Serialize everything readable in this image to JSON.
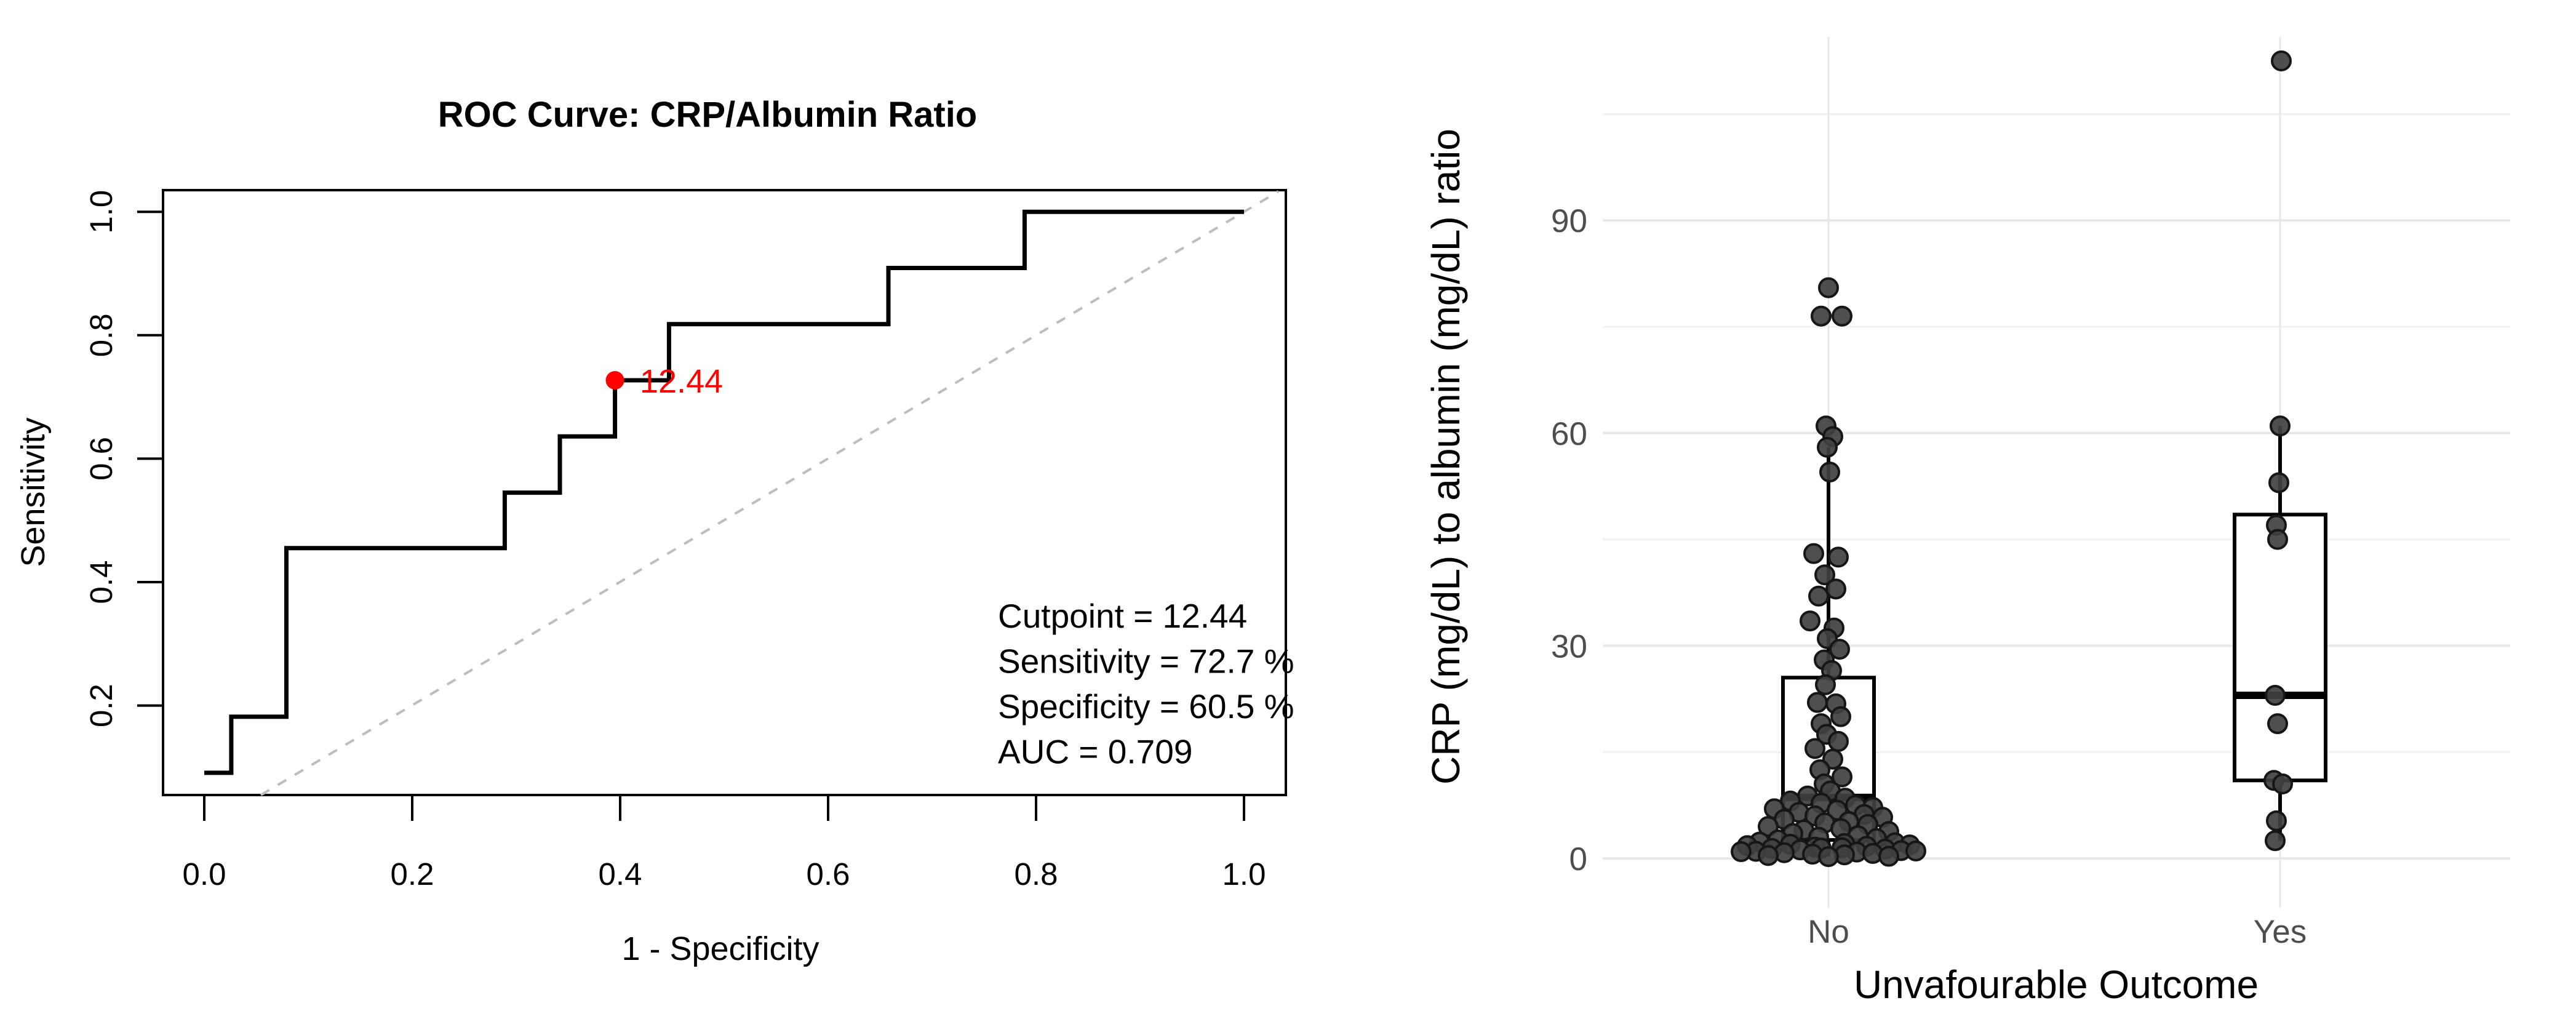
{
  "figure": {
    "background": "#ffffff",
    "description_left": "ROC curve panel",
    "description_right": "Boxplot with jittered points panel"
  },
  "chart_data": [
    {
      "type": "line",
      "subtype": "roc-step-curve",
      "title": "ROC Curve: CRP/Albumin Ratio",
      "xlabel": "1 - Specificity",
      "ylabel": "Sensitivity",
      "x_tick_labels": [
        "0.0",
        "0.2",
        "0.4",
        "0.6",
        "0.8",
        "1.0"
      ],
      "x_tick_values": [
        0,
        0.2,
        0.4,
        0.6,
        0.8,
        1.0
      ],
      "y_tick_labels": [
        "0.2",
        "0.4",
        "0.6",
        "0.8",
        "1.0"
      ],
      "y_tick_values": [
        0.2,
        0.4,
        0.6,
        0.8,
        1.0
      ],
      "xlim": [
        0,
        1
      ],
      "ylim": [
        0.09,
        1.0
      ],
      "grid": false,
      "legend": "none",
      "curve_color": "#000000",
      "diagonal_reference_line": true,
      "diagonal_color": "#bdbdbd",
      "roc_step_points": [
        [
          0,
          0.091
        ],
        [
          0.026,
          0.091
        ],
        [
          0.026,
          0.182
        ],
        [
          0.079,
          0.182
        ],
        [
          0.079,
          0.455
        ],
        [
          0.289,
          0.455
        ],
        [
          0.289,
          0.545
        ],
        [
          0.342,
          0.545
        ],
        [
          0.342,
          0.636
        ],
        [
          0.395,
          0.636
        ],
        [
          0.395,
          0.727
        ],
        [
          0.447,
          0.727
        ],
        [
          0.447,
          0.818
        ],
        [
          0.658,
          0.818
        ],
        [
          0.658,
          0.909
        ],
        [
          0.789,
          0.909
        ],
        [
          0.789,
          1.0
        ],
        [
          1.0,
          1.0
        ]
      ],
      "cutpoint": {
        "x": 0.395,
        "y": 0.727,
        "label": "12.44",
        "color": "#ff0000"
      },
      "annotation_lines": [
        "Cutpoint = 12.44",
        "Sensitivity = 72.7 %",
        "Specificity = 60.5 %",
        "AUC = 0.709"
      ]
    },
    {
      "type": "scatter",
      "subtype": "boxplot-with-jitter",
      "title": "",
      "xlabel": "Unvafourable Outcome",
      "ylabel": "CRP (mg/dL) to albumin (mg/dL) ratio",
      "categories": [
        "No",
        "Yes"
      ],
      "y_tick_labels": [
        "0",
        "30",
        "60",
        "90"
      ],
      "y_tick_values": [
        0,
        30,
        60,
        90
      ],
      "y_minor_gridlines": [
        15,
        45,
        75,
        105
      ],
      "ylim": [
        0,
        116
      ],
      "grid": true,
      "legend": "none",
      "colors": {
        "major_gridline": "#e8e8e8",
        "minor_gridline": "#f1f1f1",
        "category_gridline": "#e8e8e8",
        "tick_label": "#4d4d4d",
        "point_fill": "#404040",
        "point_stroke": "#161616",
        "box_stroke": "#000000",
        "box_fill": "#ffffff"
      },
      "series": [
        {
          "category": "No",
          "box": {
            "q1": 2.6,
            "median": 8.6,
            "q3": 25.5,
            "whisker_low": 0.3,
            "whisker_high": 58
          },
          "points": [
            [
              80.5,
              0
            ],
            [
              76.5,
              -12
            ],
            [
              76.5,
              22
            ],
            [
              61,
              -4
            ],
            [
              59.5,
              7
            ],
            [
              58,
              -2
            ],
            [
              54.5,
              2
            ],
            [
              43,
              -24
            ],
            [
              42.5,
              16
            ],
            [
              40,
              -6
            ],
            [
              38,
              12
            ],
            [
              37,
              -16
            ],
            [
              33.5,
              -30
            ],
            [
              32.5,
              9
            ],
            [
              31,
              -2
            ],
            [
              29.5,
              18
            ],
            [
              28,
              -7
            ],
            [
              26.5,
              5
            ],
            [
              24.5,
              -5
            ],
            [
              22,
              -18
            ],
            [
              21.8,
              12
            ],
            [
              20,
              20
            ],
            [
              19,
              -12
            ],
            [
              17.5,
              -3
            ],
            [
              16.5,
              16
            ],
            [
              15.5,
              -22
            ],
            [
              14,
              7
            ],
            [
              12.5,
              -14
            ],
            [
              11.5,
              22
            ],
            [
              10.5,
              -7
            ],
            [
              9.5,
              3
            ],
            [
              8.8,
              -34
            ],
            [
              8.5,
              27
            ],
            [
              8.1,
              -62
            ],
            [
              7.8,
              -12
            ],
            [
              7.5,
              44
            ],
            [
              7.2,
              72
            ],
            [
              7,
              -88
            ],
            [
              6.8,
              14
            ],
            [
              6.5,
              -48
            ],
            [
              6.2,
              58
            ],
            [
              6,
              -22
            ],
            [
              5.8,
              88
            ],
            [
              5.5,
              -72
            ],
            [
              5.2,
              33
            ],
            [
              5,
              -6
            ],
            [
              4.8,
              64
            ],
            [
              4.5,
              -98
            ],
            [
              4.2,
              20
            ],
            [
              4,
              -40
            ],
            [
              3.8,
              98
            ],
            [
              3.5,
              -58
            ],
            [
              3.2,
              48
            ],
            [
              3,
              -16
            ],
            [
              2.8,
              78
            ],
            [
              2.6,
              -82
            ],
            [
              2.3,
              -112
            ],
            [
              2.2,
              108
            ],
            [
              2.1,
              26
            ],
            [
              2,
              -62
            ],
            [
              1.9,
              132
            ],
            [
              1.8,
              -132
            ],
            [
              1.7,
              62
            ],
            [
              1.6,
              -22
            ],
            [
              1.5,
              22
            ],
            [
              1.45,
              -12
            ],
            [
              1.4,
              -92
            ],
            [
              1.3,
              92
            ],
            [
              1.2,
              -46
            ],
            [
              1.1,
              118
            ],
            [
              1.05,
              142
            ],
            [
              1,
              -118
            ],
            [
              0.95,
              -142
            ],
            [
              0.9,
              46
            ],
            [
              0.8,
              -72
            ],
            [
              0.7,
              72
            ],
            [
              0.6,
              -26
            ],
            [
              0.5,
              26
            ],
            [
              0.4,
              -98
            ],
            [
              0.3,
              98
            ],
            [
              0.25,
              0
            ]
          ]
        },
        {
          "category": "Yes",
          "box": {
            "q1": 11,
            "median": 23,
            "q3": 48.5,
            "whisker_low": 2.5,
            "whisker_high": 61
          },
          "points": [
            [
              112.5,
              2
            ],
            [
              61,
              0
            ],
            [
              53,
              -2
            ],
            [
              47,
              -6
            ],
            [
              45,
              -4
            ],
            [
              23,
              -8
            ],
            [
              19,
              -4
            ],
            [
              11,
              -10
            ],
            [
              10.5,
              4
            ],
            [
              5.3,
              -6
            ],
            [
              2.5,
              -8
            ]
          ]
        }
      ]
    }
  ]
}
